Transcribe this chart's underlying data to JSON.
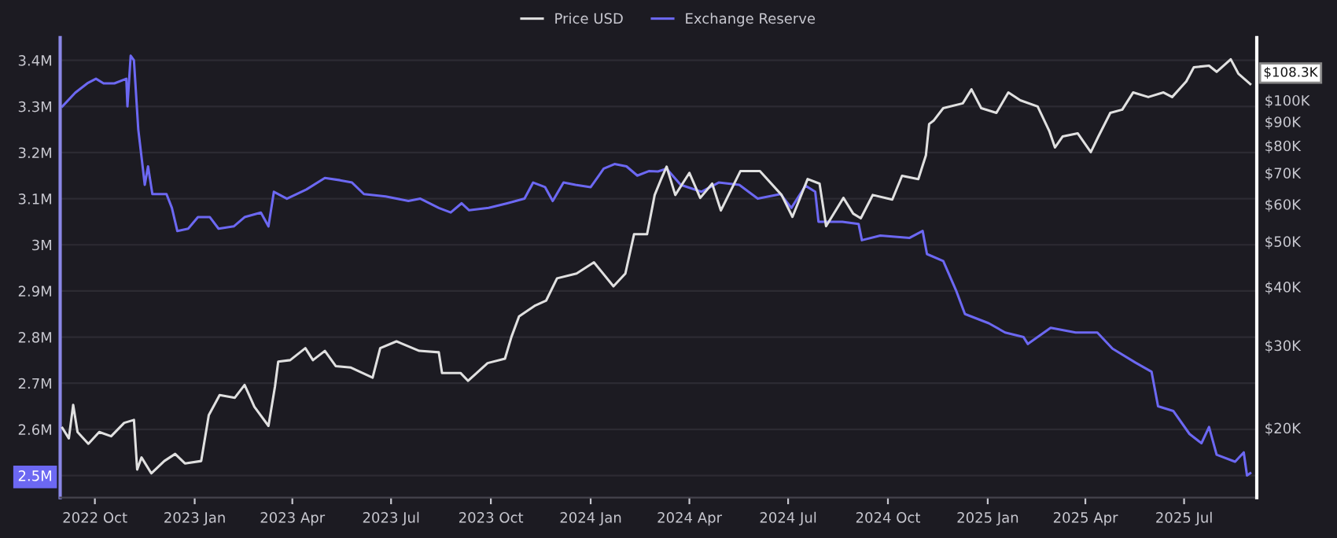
{
  "chart_data": {
    "type": "line",
    "legend": "top",
    "grid": "y",
    "log": "y2",
    "line_style": "solid",
    "marker": "none",
    "xlim": [
      "2022-08-30",
      "2025-09-06"
    ],
    "xticks": [
      {
        "value": "2022-10-01",
        "label": "2022 Oct"
      },
      {
        "value": "2023-01-01",
        "label": "2023 Jan"
      },
      {
        "value": "2023-04-01",
        "label": "2023 Apr"
      },
      {
        "value": "2023-07-01",
        "label": "2023 Jul"
      },
      {
        "value": "2023-10-01",
        "label": "2023 Oct"
      },
      {
        "value": "2024-01-01",
        "label": "2024 Jan"
      },
      {
        "value": "2024-04-01",
        "label": "2024 Apr"
      },
      {
        "value": "2024-07-01",
        "label": "2024 Jul"
      },
      {
        "value": "2024-10-01",
        "label": "2024 Oct"
      },
      {
        "value": "2025-01-01",
        "label": "2025 Jan"
      },
      {
        "value": "2025-04-01",
        "label": "2025 Apr"
      },
      {
        "value": "2025-07-01",
        "label": "2025 Jul"
      }
    ],
    "ylim": [
      2452000,
      3449000
    ],
    "yticks": [
      {
        "value": 2500000,
        "label": "2.5M"
      },
      {
        "value": 2600000,
        "label": "2.6M"
      },
      {
        "value": 2700000,
        "label": "2.7M"
      },
      {
        "value": 2800000,
        "label": "2.8M"
      },
      {
        "value": 2900000,
        "label": "2.9M"
      },
      {
        "value": 3000000,
        "label": "3M"
      },
      {
        "value": 3100000,
        "label": "3.1M"
      },
      {
        "value": 3200000,
        "label": "3.2M"
      },
      {
        "value": 3300000,
        "label": "3.3M"
      },
      {
        "value": 3400000,
        "label": "3.4M"
      }
    ],
    "y2lim": [
      14200,
      136000
    ],
    "y2ticks": [
      {
        "value": 20000,
        "label": "$20K"
      },
      {
        "value": 30000,
        "label": "$30K"
      },
      {
        "value": 40000,
        "label": "$40K"
      },
      {
        "value": 50000,
        "label": "$50K"
      },
      {
        "value": 60000,
        "label": "$60K"
      },
      {
        "value": 70000,
        "label": "$70K"
      },
      {
        "value": 80000,
        "label": "$80K"
      },
      {
        "value": 90000,
        "label": "$90K"
      },
      {
        "value": 100000,
        "label": "$100K"
      }
    ],
    "annotations": [
      "$108.3K"
    ],
    "series": [
      {
        "name": "Price USD",
        "color": "#e0e0e0",
        "axis": "y2",
        "x": [
          "2022-09-01",
          "2022-09-07",
          "2022-09-11",
          "2022-09-15",
          "2022-09-25",
          "2022-10-05",
          "2022-10-16",
          "2022-10-28",
          "2022-11-06",
          "2022-11-09",
          "2022-11-13",
          "2022-11-22",
          "2022-12-04",
          "2022-12-14",
          "2022-12-23",
          "2023-01-07",
          "2023-01-14",
          "2023-01-24",
          "2023-02-07",
          "2023-02-16",
          "2023-02-25",
          "2023-03-10",
          "2023-03-16",
          "2023-03-19",
          "2023-03-30",
          "2023-04-13",
          "2023-04-20",
          "2023-05-01",
          "2023-05-11",
          "2023-05-25",
          "2023-06-14",
          "2023-06-21",
          "2023-07-06",
          "2023-07-27",
          "2023-08-14",
          "2023-08-17",
          "2023-09-03",
          "2023-09-10",
          "2023-09-28",
          "2023-10-14",
          "2023-10-20",
          "2023-10-27",
          "2023-11-11",
          "2023-11-21",
          "2023-12-01",
          "2023-12-19",
          "2024-01-04",
          "2024-01-22",
          "2024-02-02",
          "2024-02-10",
          "2024-02-22",
          "2024-02-29",
          "2024-03-06",
          "2024-03-11",
          "2024-03-19",
          "2024-04-01",
          "2024-04-11",
          "2024-04-22",
          "2024-04-30",
          "2024-05-18",
          "2024-06-05",
          "2024-06-25",
          "2024-07-05",
          "2024-07-19",
          "2024-07-30",
          "2024-08-05",
          "2024-08-21",
          "2024-08-30",
          "2024-09-06",
          "2024-09-17",
          "2024-10-05",
          "2024-10-14",
          "2024-10-29",
          "2024-11-05",
          "2024-11-08",
          "2024-11-12",
          "2024-11-21",
          "2024-12-09",
          "2024-12-17",
          "2024-12-26",
          "2025-01-09",
          "2025-01-20",
          "2025-01-31",
          "2025-02-16",
          "2025-02-27",
          "2025-03-04",
          "2025-03-11",
          "2025-03-25",
          "2025-04-06",
          "2025-04-13",
          "2025-04-24",
          "2025-05-05",
          "2025-05-15",
          "2025-05-29",
          "2025-06-12",
          "2025-06-20",
          "2025-07-03",
          "2025-07-10",
          "2025-07-24",
          "2025-07-31",
          "2025-08-13",
          "2025-08-20",
          "2025-08-31"
        ],
        "values": [
          20000,
          19000,
          22400,
          19600,
          18500,
          19600,
          19200,
          20500,
          20800,
          16300,
          17300,
          16000,
          17000,
          17600,
          16800,
          17000,
          21300,
          23500,
          23200,
          24700,
          22200,
          20200,
          24500,
          27700,
          27900,
          29600,
          27900,
          29200,
          27100,
          26900,
          25600,
          29600,
          30600,
          29200,
          29000,
          26200,
          26200,
          25200,
          27500,
          28100,
          31300,
          34600,
          36500,
          37400,
          41700,
          42700,
          45100,
          40100,
          42700,
          51800,
          51800,
          62800,
          67900,
          72200,
          62800,
          70000,
          61900,
          66400,
          58200,
          70600,
          70600,
          62800,
          56400,
          67900,
          66400,
          53900,
          61900,
          57300,
          56000,
          62800,
          61400,
          69000,
          67900,
          76300,
          89000,
          90400,
          96200,
          98500,
          105500,
          96200,
          94000,
          103900,
          100000,
          97000,
          85700,
          79300,
          83700,
          85000,
          77500,
          83700,
          94000,
          95500,
          103900,
          101600,
          103900,
          101600,
          109700,
          117600,
          118500,
          115000,
          122300,
          114000,
          108300
        ]
      },
      {
        "name": "Exchange Reserve",
        "color": "#6c68f2",
        "x": [
          "2022-09-01",
          "2022-09-13",
          "2022-09-24",
          "2022-10-02",
          "2022-10-09",
          "2022-10-19",
          "2022-10-30",
          "2022-10-31",
          "2022-11-03",
          "2022-11-06",
          "2022-11-10",
          "2022-11-14",
          "2022-11-16",
          "2022-11-19",
          "2022-11-23",
          "2022-12-06",
          "2022-12-11",
          "2022-12-16",
          "2022-12-26",
          "2023-01-04",
          "2023-01-15",
          "2023-01-23",
          "2023-02-06",
          "2023-02-16",
          "2023-03-03",
          "2023-03-10",
          "2023-03-15",
          "2023-03-27",
          "2023-04-14",
          "2023-05-01",
          "2023-05-15",
          "2023-05-26",
          "2023-06-06",
          "2023-06-26",
          "2023-07-17",
          "2023-07-28",
          "2023-08-14",
          "2023-08-25",
          "2023-09-04",
          "2023-09-11",
          "2023-09-29",
          "2023-10-16",
          "2023-11-01",
          "2023-11-09",
          "2023-11-20",
          "2023-11-27",
          "2023-12-07",
          "2023-12-18",
          "2024-01-01",
          "2024-01-13",
          "2024-01-23",
          "2024-02-03",
          "2024-02-13",
          "2024-02-24",
          "2024-03-03",
          "2024-03-11",
          "2024-03-24",
          "2024-04-12",
          "2024-04-28",
          "2024-05-17",
          "2024-06-03",
          "2024-06-24",
          "2024-07-04",
          "2024-07-17",
          "2024-07-26",
          "2024-07-29",
          "2024-08-20",
          "2024-09-04",
          "2024-09-07",
          "2024-09-24",
          "2024-10-21",
          "2024-11-02",
          "2024-11-06",
          "2024-11-21",
          "2024-12-03",
          "2024-12-11",
          "2025-01-02",
          "2025-01-17",
          "2025-02-03",
          "2025-02-07",
          "2025-02-28",
          "2025-03-23",
          "2025-04-12",
          "2025-04-26",
          "2025-05-17",
          "2025-06-01",
          "2025-06-07",
          "2025-06-21",
          "2025-07-06",
          "2025-07-17",
          "2025-07-24",
          "2025-07-31",
          "2025-08-17",
          "2025-08-25",
          "2025-08-28",
          "2025-08-31"
        ],
        "values": [
          3300000,
          3330000,
          3350000,
          3360000,
          3350000,
          3350000,
          3360000,
          3300000,
          3410000,
          3400000,
          3250000,
          3170000,
          3130000,
          3170000,
          3110000,
          3110000,
          3080000,
          3030000,
          3035000,
          3060000,
          3060000,
          3035000,
          3040000,
          3060000,
          3070000,
          3040000,
          3115000,
          3100000,
          3120000,
          3145000,
          3140000,
          3135000,
          3110000,
          3105000,
          3095000,
          3100000,
          3080000,
          3070000,
          3090000,
          3075000,
          3080000,
          3090000,
          3100000,
          3135000,
          3125000,
          3095000,
          3135000,
          3130000,
          3125000,
          3165000,
          3175000,
          3170000,
          3150000,
          3160000,
          3159000,
          3165000,
          3130000,
          3115000,
          3135000,
          3130000,
          3100000,
          3110000,
          3080000,
          3128000,
          3115000,
          3050000,
          3050000,
          3045000,
          3010000,
          3020000,
          3015000,
          3030000,
          2980000,
          2965000,
          2900000,
          2850000,
          2830000,
          2810000,
          2800000,
          2785000,
          2820000,
          2810000,
          2810000,
          2775000,
          2745000,
          2725000,
          2650000,
          2640000,
          2590000,
          2570000,
          2605000,
          2545000,
          2530000,
          2550000,
          2500000,
          2505000
        ]
      }
    ]
  }
}
